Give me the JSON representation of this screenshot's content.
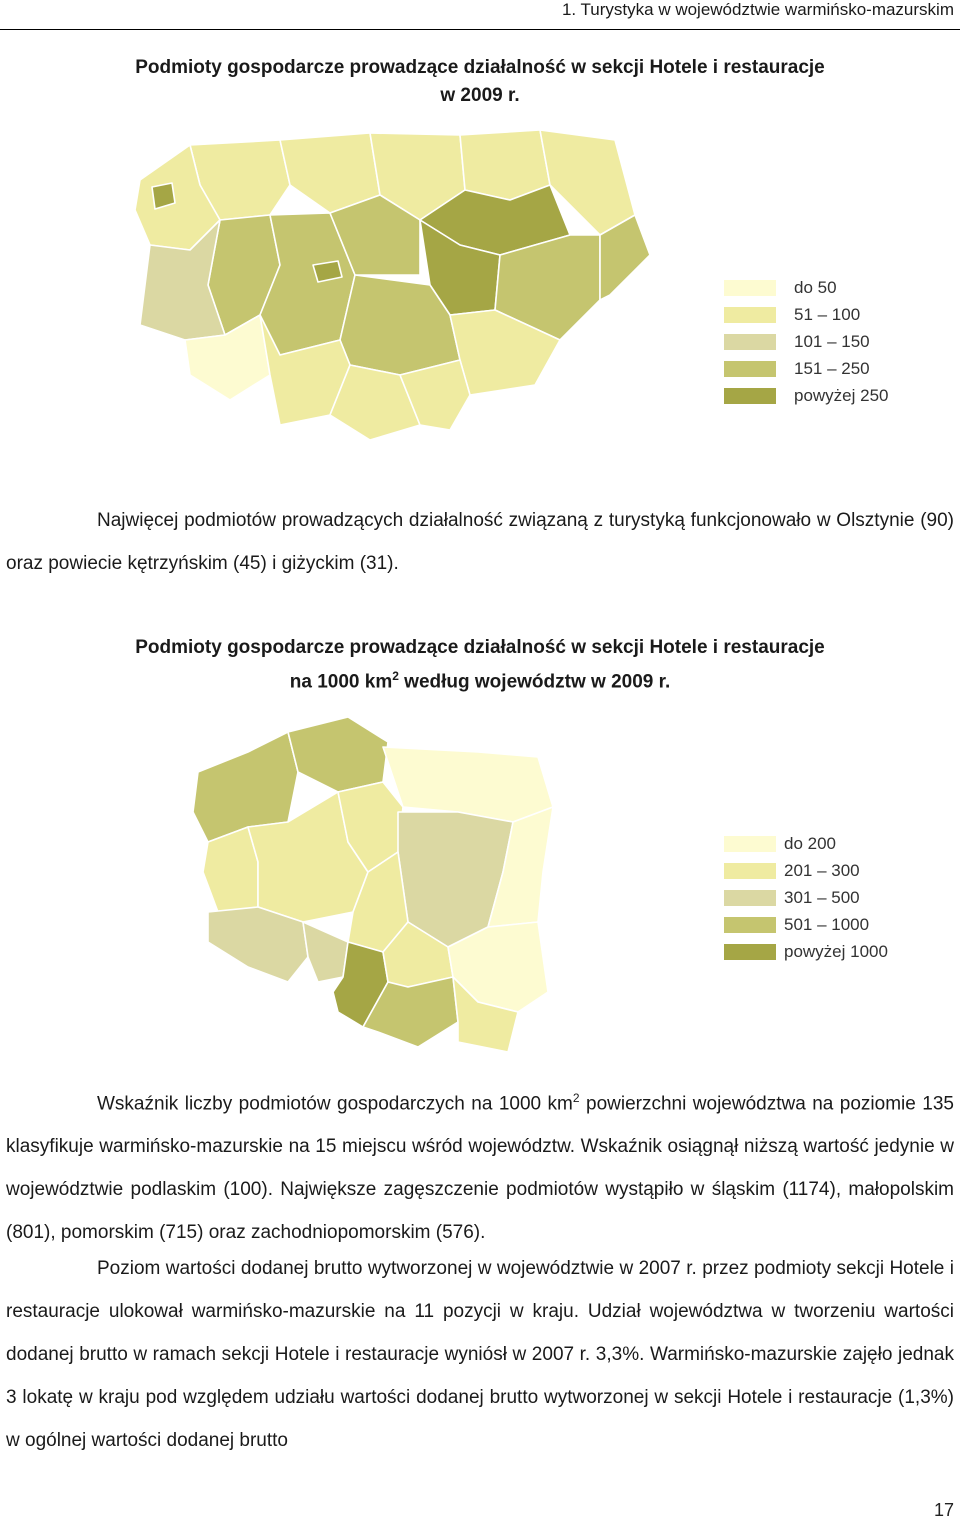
{
  "header": {
    "text": "1. Turystyka w województwie warmińsko-mazurskim"
  },
  "map1": {
    "title_line1": "Podmioty gospodarcze prowadzące działalność w sekcji Hotele i restauracje",
    "title_line2": "w 2009 r.",
    "legend": [
      {
        "label": "do 50",
        "color": "#fdfbd1"
      },
      {
        "label": "51 – 100",
        "color": "#efeba1"
      },
      {
        "label": "101 – 150",
        "color": "#dbd8a3"
      },
      {
        "label": "151 – 250",
        "color": "#c5c56f"
      },
      {
        "label": "powyżej 250",
        "color": "#a5a645"
      }
    ]
  },
  "paragraph1": {
    "text": "Najwięcej podmiotów prowadzących działalność związaną z turystyką funkcjonowało w Olsztynie (90) oraz powiecie kętrzyńskim (45) i giżyckim (31)."
  },
  "map2": {
    "title_line1": "Podmioty gospodarcze prowadzące działalność w sekcji Hotele i restauracje",
    "title_line2_pre": "na 1000 km",
    "title_line2_sup": "2",
    "title_line2_post": " według województw w 2009 r.",
    "legend": [
      {
        "label": "do 200",
        "color": "#fdfbd1"
      },
      {
        "label": "201 – 300",
        "color": "#efeba1"
      },
      {
        "label": "301 – 500",
        "color": "#dbd8a3"
      },
      {
        "label": "501 – 1000",
        "color": "#c5c56f"
      },
      {
        "label": "powyżej 1000",
        "color": "#a5a645"
      }
    ]
  },
  "paragraph2": {
    "part1": "Wskaźnik liczby podmiotów gospodarczych na 1000 km",
    "sup": "2",
    "part2": " powierzchni województwa na poziomie 135 klasyfikuje warmińsko-mazurskie na 15 miejscu wśród województw. Wskaźnik osiągnął niższą wartość jedynie w województwie podlaskim (100). Największe zagęszczenie podmiotów wystąpiło w śląskim (1174), małopolskim (801), pomorskim (715) oraz zachodniopomorskim (576)."
  },
  "paragraph3": {
    "text": "Poziom wartości dodanej brutto wytworzonej w województwie w 2007 r. przez podmioty sekcji Hotele i restauracje ulokował warmińsko-mazurskie na 11 pozycji w kraju. Udział województwa w tworzeniu wartości dodanej brutto w ramach sekcji Hotele i restauracje wyniósł w 2007 r. 3,3%. Warmińsko-mazurskie zajęło jednak 3 lokatę w kraju pod względem udziału wartości dodanej brutto wytworzonej w sekcji Hotele i restauracje (1,3%) w ogólnej wartości dodanej brutto"
  },
  "page_number": "17"
}
